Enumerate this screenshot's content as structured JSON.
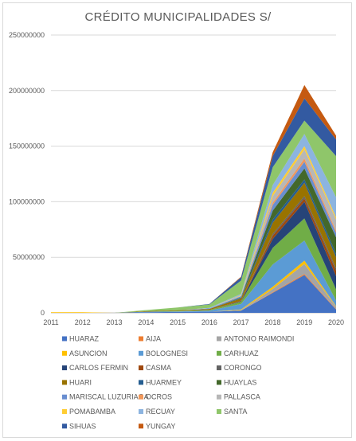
{
  "chart_data": {
    "type": "area",
    "stacked": true,
    "title": "CRÉDITO MUNICIPALIDADES S/",
    "xlabel": "",
    "ylabel": "",
    "ylim": [
      0,
      250000000
    ],
    "yticks": [
      0,
      50000000,
      100000000,
      150000000,
      200000000,
      250000000
    ],
    "x": [
      "2011",
      "2012",
      "2013",
      "2014",
      "2015",
      "2016",
      "2017",
      "2018",
      "2019",
      "2020"
    ],
    "legend_position": "bottom",
    "grid": "horizontal",
    "series": [
      {
        "name": "HUARAZ",
        "color": "#4472c4",
        "values": [
          0,
          0,
          0,
          500000,
          800000,
          1000000,
          2000000,
          18000000,
          34000000,
          3000000
        ]
      },
      {
        "name": "AIJA",
        "color": "#ed7d31",
        "values": [
          0,
          0,
          0,
          0,
          0,
          0,
          0,
          500000,
          1000000,
          500000
        ]
      },
      {
        "name": "ANTONIO RAIMONDI",
        "color": "#a5a5a5",
        "values": [
          0,
          0,
          0,
          0,
          0,
          0,
          500000,
          3000000,
          9000000,
          2000000
        ]
      },
      {
        "name": "ASUNCION",
        "color": "#ffc000",
        "values": [
          500000,
          500000,
          0,
          0,
          0,
          0,
          500000,
          2000000,
          3000000,
          500000
        ]
      },
      {
        "name": "BOLOGNESI",
        "color": "#5b9bd5",
        "values": [
          0,
          0,
          0,
          500000,
          500000,
          1000000,
          5000000,
          20000000,
          18000000,
          5000000
        ]
      },
      {
        "name": "CARHUAZ",
        "color": "#70ad47",
        "values": [
          0,
          0,
          0,
          0,
          500000,
          500000,
          2000000,
          15000000,
          20000000,
          10000000
        ]
      },
      {
        "name": "CARLOS FERMIN",
        "color": "#264478",
        "values": [
          0,
          0,
          0,
          0,
          0,
          0,
          500000,
          8000000,
          15000000,
          12000000
        ]
      },
      {
        "name": "CASMA",
        "color": "#9e480e",
        "values": [
          0,
          0,
          0,
          0,
          0,
          0,
          500000,
          3000000,
          3000000,
          5000000
        ]
      },
      {
        "name": "CORONGO",
        "color": "#636363",
        "values": [
          0,
          0,
          0,
          0,
          0,
          0,
          0,
          1500000,
          2000000,
          2000000
        ]
      },
      {
        "name": "HUARI",
        "color": "#997300",
        "values": [
          0,
          0,
          0,
          500000,
          500000,
          1000000,
          2000000,
          10000000,
          12000000,
          10000000
        ]
      },
      {
        "name": "HUARMEY",
        "color": "#255e91",
        "values": [
          0,
          0,
          0,
          0,
          0,
          0,
          500000,
          3000000,
          3000000,
          3000000
        ]
      },
      {
        "name": "HUAYLAS",
        "color": "#43682b",
        "values": [
          0,
          0,
          0,
          0,
          0,
          0,
          500000,
          8000000,
          10000000,
          15000000
        ]
      },
      {
        "name": "MARISCAL LUZURIAGA",
        "color": "#698ed0",
        "values": [
          0,
          0,
          0,
          0,
          0,
          500000,
          1000000,
          5000000,
          6000000,
          4000000
        ]
      },
      {
        "name": "OCROS",
        "color": "#f1975a",
        "values": [
          0,
          0,
          0,
          0,
          0,
          0,
          0,
          2000000,
          3000000,
          2000000
        ]
      },
      {
        "name": "PALLASCA",
        "color": "#b7b7b7",
        "values": [
          0,
          0,
          0,
          0,
          0,
          0,
          500000,
          6000000,
          8000000,
          10000000
        ]
      },
      {
        "name": "POMABAMBA",
        "color": "#ffcd33",
        "values": [
          0,
          0,
          0,
          0,
          0,
          0,
          500000,
          3000000,
          3000000,
          2000000
        ]
      },
      {
        "name": "RECUAY",
        "color": "#8cb4e0",
        "values": [
          0,
          0,
          0,
          0,
          0,
          500000,
          1000000,
          7000000,
          11000000,
          18000000
        ]
      },
      {
        "name": "SANTA",
        "color": "#8fc66a",
        "values": [
          0,
          0,
          0,
          1000000,
          2500000,
          3000000,
          12000000,
          16000000,
          12000000,
          37000000
        ]
      },
      {
        "name": "SIHUAS",
        "color": "#335aa1",
        "values": [
          0,
          0,
          0,
          0,
          0,
          500000,
          3000000,
          10000000,
          20000000,
          15000000
        ]
      },
      {
        "name": "YUNGAY",
        "color": "#c55a11",
        "values": [
          0,
          0,
          0,
          0,
          0,
          0,
          500000,
          3500000,
          12000000,
          3500000
        ]
      }
    ]
  }
}
